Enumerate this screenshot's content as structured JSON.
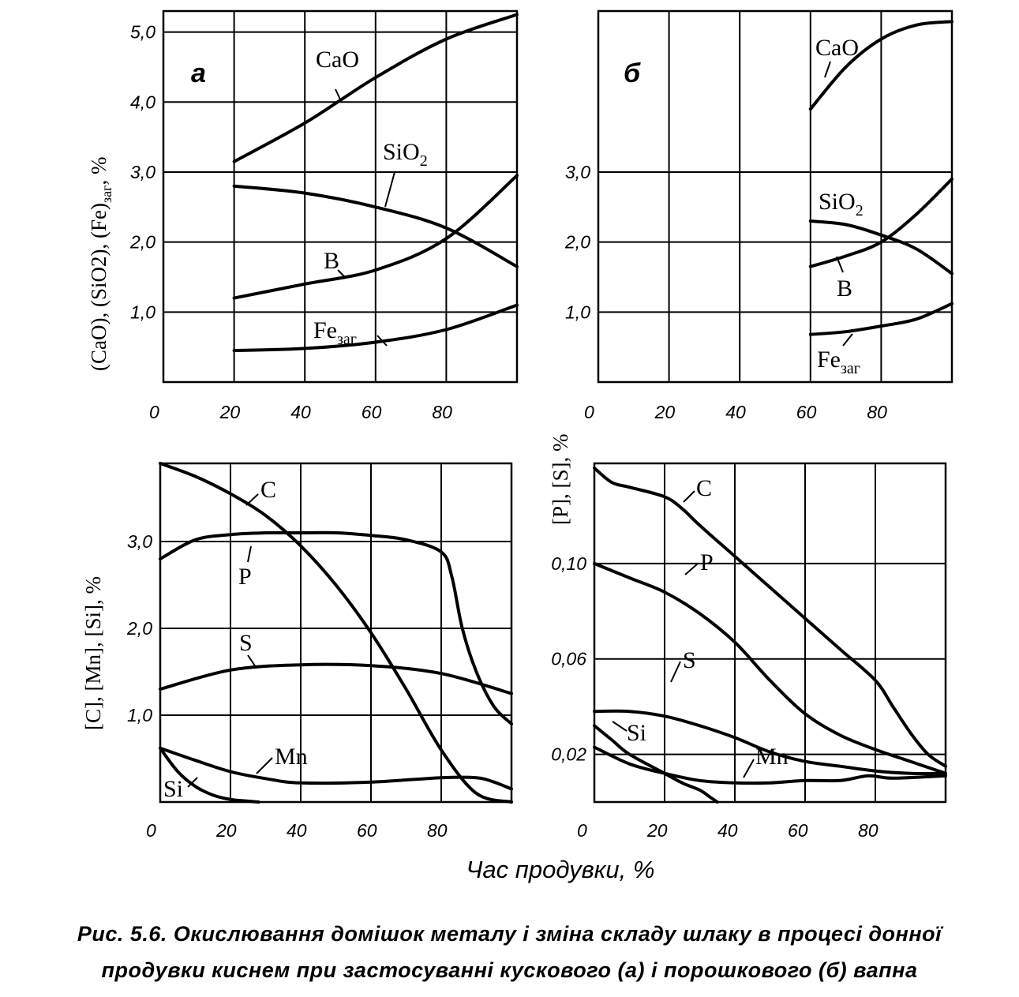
{
  "figure": {
    "xlabel": "Час продувки, %",
    "caption_line1": "Рис. 5.6. Окислювання домішок металу і зміна складу шлаку в процесі донної",
    "caption_line2": "продувки киснем при застосуванні кускового (а) і порошкового (б) вапна"
  },
  "chart_data": [
    {
      "id": "a-top",
      "type": "line",
      "panel_label": "а",
      "ylabel_parts": [
        "(CaO), (SiO2), (Fe)",
        "заг",
        ", %"
      ],
      "xlim": [
        0,
        100
      ],
      "ylim": [
        0,
        5.3
      ],
      "x_ticks": [
        "0",
        "20",
        "40",
        "60",
        "80"
      ],
      "y_ticks": [
        "1,0",
        "2,0",
        "3,0",
        "4,0",
        "5,0"
      ],
      "grid": true,
      "series": [
        {
          "name": "CaO",
          "label": "CaO",
          "sub": "",
          "x": [
            20,
            40,
            60,
            80,
            100
          ],
          "y": [
            3.15,
            3.7,
            4.35,
            4.9,
            5.25
          ]
        },
        {
          "name": "SiO2",
          "label": "SiO",
          "sub": "2",
          "x": [
            20,
            40,
            60,
            80,
            100
          ],
          "y": [
            2.8,
            2.7,
            2.5,
            2.2,
            1.65
          ]
        },
        {
          "name": "B",
          "label": "B",
          "sub": "",
          "x": [
            20,
            40,
            60,
            80,
            100
          ],
          "y": [
            1.2,
            1.4,
            1.6,
            2.05,
            2.95
          ]
        },
        {
          "name": "Fe заг",
          "label": "Fe",
          "sub": "заг",
          "x": [
            20,
            40,
            60,
            80,
            100
          ],
          "y": [
            0.45,
            0.48,
            0.57,
            0.75,
            1.1
          ]
        }
      ]
    },
    {
      "id": "b-top",
      "type": "line",
      "panel_label": "б",
      "xlim": [
        0,
        100
      ],
      "ylim": [
        0,
        5.3
      ],
      "x_ticks": [
        "0",
        "20",
        "40",
        "60",
        "80"
      ],
      "y_ticks": [
        "1,0",
        "2,0",
        "3,0"
      ],
      "grid": true,
      "series": [
        {
          "name": "CaO",
          "label": "CaO",
          "sub": "",
          "x": [
            60,
            70,
            80,
            90,
            100
          ],
          "y": [
            3.9,
            4.5,
            4.9,
            5.1,
            5.15
          ]
        },
        {
          "name": "SiO2",
          "label": "SiO",
          "sub": "2",
          "x": [
            60,
            70,
            80,
            90,
            100
          ],
          "y": [
            2.3,
            2.25,
            2.1,
            1.9,
            1.55
          ]
        },
        {
          "name": "B",
          "label": "B",
          "sub": "",
          "x": [
            60,
            70,
            80,
            90,
            100
          ],
          "y": [
            1.65,
            1.8,
            2.0,
            2.4,
            2.9
          ]
        },
        {
          "name": "Fe заг",
          "label": "Fe",
          "sub": "заг",
          "x": [
            60,
            70,
            80,
            90,
            100
          ],
          "y": [
            0.68,
            0.72,
            0.8,
            0.9,
            1.12
          ]
        }
      ]
    },
    {
      "id": "a-bottom",
      "type": "line",
      "ylabel": "[C], [Mn], [Si], %",
      "xlim": [
        0,
        100
      ],
      "ylim": [
        0,
        3.9
      ],
      "x_ticks": [
        "0",
        "20",
        "40",
        "60",
        "80"
      ],
      "y_ticks": [
        "1,0",
        "2,0",
        "3,0"
      ],
      "grid": true,
      "series": [
        {
          "name": "C",
          "label": "C",
          "sub": "",
          "x": [
            0,
            10,
            20,
            30,
            40,
            50,
            60,
            70,
            80,
            90,
            100
          ],
          "y": [
            3.9,
            3.75,
            3.55,
            3.3,
            2.95,
            2.5,
            1.95,
            1.3,
            0.6,
            0.1,
            0
          ]
        },
        {
          "name": "P",
          "label": "P",
          "sub": "",
          "x": [
            0,
            10,
            20,
            30,
            40,
            50,
            60,
            70,
            80,
            83,
            86,
            90,
            95,
            100
          ],
          "y": [
            2.8,
            3.02,
            3.08,
            3.1,
            3.1,
            3.1,
            3.07,
            3.02,
            2.88,
            2.6,
            2.0,
            1.5,
            1.1,
            0.9
          ]
        },
        {
          "name": "S",
          "label": "S",
          "sub": "",
          "x": [
            0,
            20,
            40,
            60,
            80,
            100
          ],
          "y": [
            1.3,
            1.52,
            1.58,
            1.57,
            1.48,
            1.25
          ]
        },
        {
          "name": "Mn",
          "label": "Mn",
          "sub": "",
          "x": [
            0,
            10,
            20,
            30,
            40,
            60,
            80,
            90,
            95,
            100
          ],
          "y": [
            0.62,
            0.48,
            0.35,
            0.27,
            0.22,
            0.23,
            0.28,
            0.28,
            0.23,
            0.15
          ]
        },
        {
          "name": "Si",
          "label": "Si",
          "sub": "",
          "x": [
            0,
            5,
            10,
            15,
            20,
            25,
            28
          ],
          "y": [
            0.62,
            0.35,
            0.18,
            0.08,
            0.03,
            0.01,
            0
          ]
        }
      ]
    },
    {
      "id": "b-bottom",
      "type": "line",
      "ylabel": "[P], [S], %",
      "xlim": [
        0,
        100
      ],
      "ylim": [
        0,
        0.142
      ],
      "x_ticks": [
        "0",
        "20",
        "40",
        "60",
        "80"
      ],
      "y_ticks": [
        "0,02",
        "0,06",
        "0,10"
      ],
      "grid": true,
      "series": [
        {
          "name": "C",
          "label": "C",
          "sub": "",
          "x": [
            0,
            5,
            10,
            20,
            25,
            30,
            40,
            50,
            60,
            70,
            80,
            85,
            90,
            95,
            100
          ],
          "y": [
            0.14,
            0.134,
            0.132,
            0.128,
            0.123,
            0.116,
            0.103,
            0.09,
            0.077,
            0.064,
            0.051,
            0.04,
            0.029,
            0.02,
            0.015
          ]
        },
        {
          "name": "P",
          "label": "P",
          "sub": "",
          "x": [
            0,
            10,
            20,
            30,
            40,
            50,
            60,
            70,
            80,
            90,
            100
          ],
          "y": [
            0.1,
            0.094,
            0.088,
            0.079,
            0.067,
            0.051,
            0.037,
            0.028,
            0.022,
            0.017,
            0.012
          ]
        },
        {
          "name": "S",
          "label": "S",
          "sub": "",
          "x": [
            0,
            10,
            20,
            30,
            40,
            50,
            60,
            70,
            80,
            90,
            100
          ],
          "y": [
            0.038,
            0.038,
            0.036,
            0.032,
            0.027,
            0.021,
            0.017,
            0.015,
            0.013,
            0.012,
            0.012
          ]
        },
        {
          "name": "Mn",
          "label": "Mn",
          "sub": "",
          "x": [
            0,
            10,
            20,
            30,
            40,
            50,
            60,
            70,
            78,
            85,
            100
          ],
          "y": [
            0.023,
            0.016,
            0.012,
            0.009,
            0.008,
            0.008,
            0.009,
            0.009,
            0.011,
            0.01,
            0.011
          ]
        },
        {
          "name": "Si",
          "label": "Si",
          "sub": "",
          "x": [
            0,
            5,
            10,
            20,
            25,
            30,
            33,
            35
          ],
          "y": [
            0.032,
            0.026,
            0.02,
            0.012,
            0.008,
            0.005,
            0.002,
            0
          ]
        }
      ]
    }
  ]
}
